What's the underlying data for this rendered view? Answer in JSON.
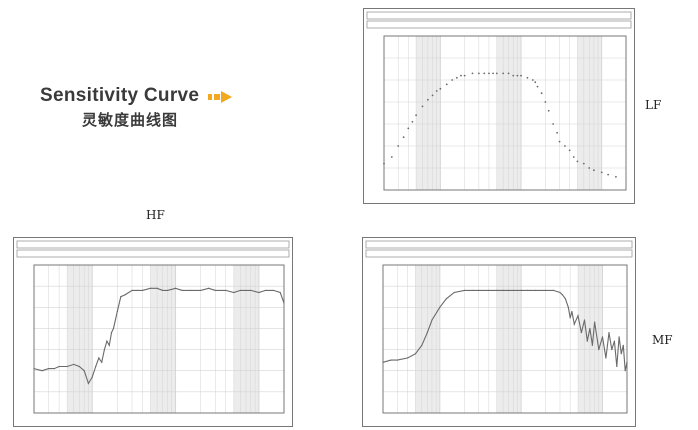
{
  "heading": {
    "en": "Sensitivity Curve",
    "zh": "灵敏度曲线图"
  },
  "labels": {
    "lf": "LF",
    "hf": "HF",
    "mf": "MF"
  },
  "colors": {
    "arrow": "#f2a81f",
    "trace": "#6a6a6a",
    "grid": "#d4d4d4",
    "band": "#ececec"
  },
  "chart_data": [
    {
      "id": "lf",
      "type": "scatter",
      "x_scale": "log",
      "xlim": [
        20,
        20000
      ],
      "ylim": [
        40,
        110
      ],
      "x": [
        20,
        25,
        30,
        35,
        40,
        45,
        50,
        60,
        70,
        80,
        90,
        100,
        120,
        140,
        160,
        180,
        200,
        250,
        300,
        350,
        400,
        450,
        500,
        600,
        700,
        800,
        900,
        1000,
        1200,
        1400,
        1500,
        1600,
        1800,
        2000,
        2200,
        2500,
        2800,
        3000,
        3500,
        4000,
        4500,
        5000,
        6000,
        7000,
        8000,
        10000,
        12000,
        15000
      ],
      "values": [
        52,
        55,
        60,
        64,
        68,
        71,
        74,
        78,
        81,
        83,
        85,
        86,
        88,
        90,
        91,
        92,
        92,
        93,
        93,
        93,
        93,
        93,
        93,
        93,
        93,
        92,
        92,
        92,
        91,
        90,
        89,
        87,
        84,
        80,
        76,
        70,
        66,
        62,
        60,
        58,
        55,
        53,
        52,
        50,
        49,
        48,
        47,
        46
      ]
    },
    {
      "id": "hf",
      "type": "line",
      "x_scale": "log",
      "xlim": [
        20,
        20000
      ],
      "ylim": [
        40,
        110
      ],
      "x": [
        20,
        25,
        30,
        35,
        40,
        50,
        60,
        70,
        80,
        90,
        100,
        110,
        120,
        130,
        140,
        150,
        160,
        170,
        180,
        200,
        220,
        250,
        300,
        350,
        400,
        500,
        600,
        700,
        800,
        1000,
        1200,
        1500,
        2000,
        2500,
        3000,
        4000,
        5000,
        6000,
        8000,
        10000,
        12000,
        15000,
        18000,
        20000
      ],
      "values": [
        61,
        60,
        61,
        61,
        62,
        62,
        63,
        62,
        60,
        54,
        57,
        62,
        66,
        64,
        70,
        74,
        72,
        78,
        80,
        88,
        95,
        96,
        98,
        98,
        98,
        99,
        99,
        98,
        98,
        99,
        98,
        98,
        98,
        99,
        98,
        98,
        97,
        98,
        98,
        97,
        98,
        98,
        97,
        92
      ]
    },
    {
      "id": "mf",
      "type": "line",
      "x_scale": "log",
      "xlim": [
        20,
        20000
      ],
      "ylim": [
        40,
        110
      ],
      "x": [
        20,
        25,
        30,
        40,
        50,
        60,
        70,
        80,
        100,
        120,
        150,
        200,
        250,
        300,
        400,
        500,
        600,
        700,
        800,
        1000,
        1200,
        1500,
        2000,
        2500,
        3000,
        3200,
        3500,
        3800,
        4000,
        4200,
        4500,
        5000,
        5500,
        6000,
        6500,
        7000,
        7500,
        8000,
        9000,
        10000,
        11000,
        12000,
        13000,
        14000,
        15000,
        16000,
        17000,
        18000,
        19000,
        20000
      ],
      "values": [
        64,
        65,
        65,
        66,
        68,
        72,
        78,
        84,
        90,
        94,
        97,
        98,
        98,
        98,
        98,
        98,
        98,
        98,
        98,
        98,
        98,
        98,
        98,
        98,
        97,
        96,
        94,
        90,
        85,
        88,
        82,
        86,
        78,
        84,
        74,
        80,
        72,
        83,
        70,
        76,
        66,
        78,
        70,
        74,
        62,
        76,
        68,
        72,
        60,
        64
      ]
    }
  ]
}
